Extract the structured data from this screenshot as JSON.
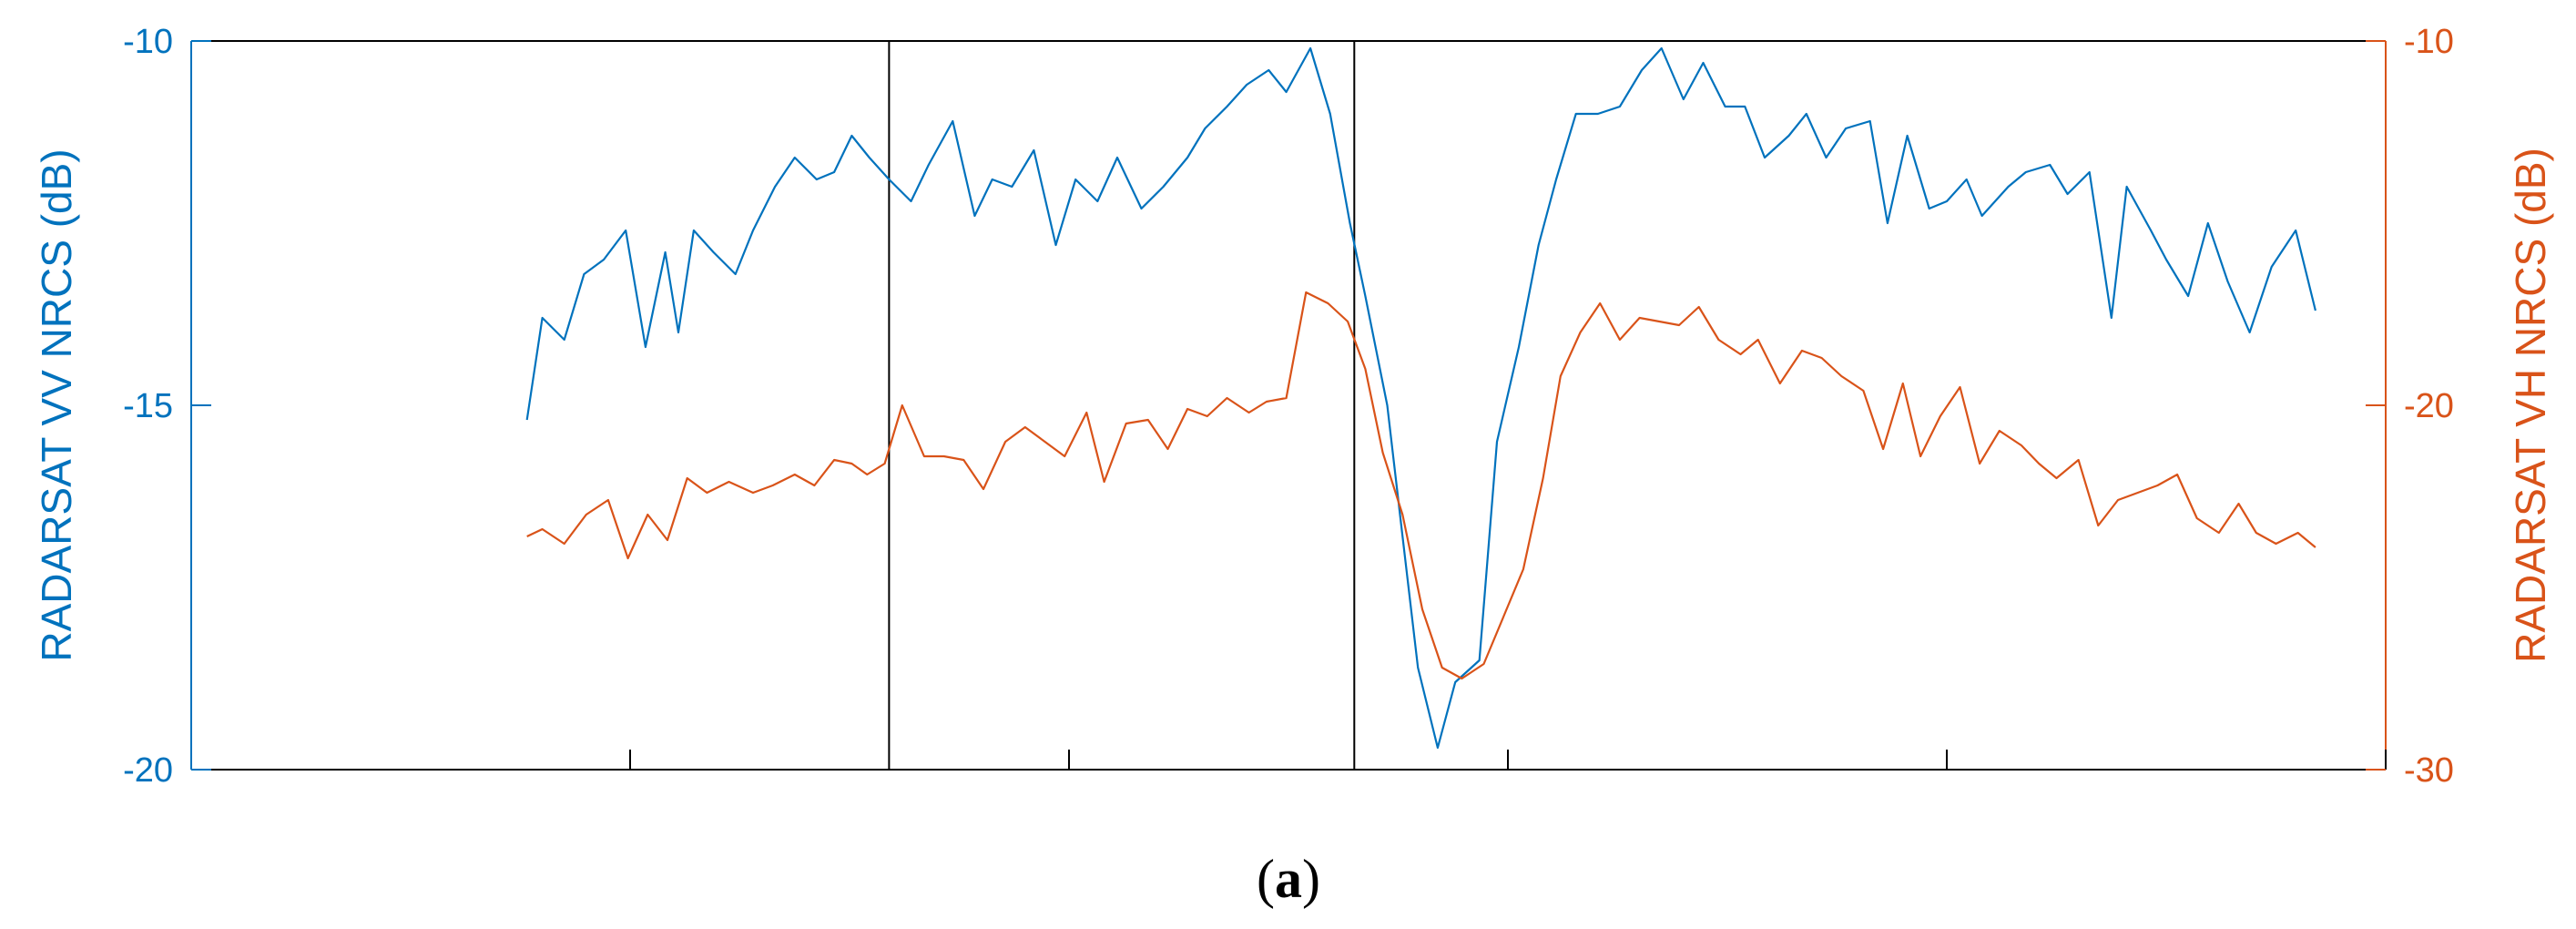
{
  "chart_data": {
    "type": "line",
    "caption": {
      "open": "(",
      "letter": "a",
      "close": ")"
    },
    "y_left": {
      "label": "RADARSAT VV NRCS (dB)",
      "lim": [
        -20,
        -10
      ],
      "ticks": [
        "-10",
        "-15",
        "-20"
      ],
      "color": "#0072BD"
    },
    "y_right": {
      "label": "RADARSAT VH NRCS (dB)",
      "lim": [
        -30,
        -10
      ],
      "ticks": [
        "-10",
        "-20",
        "-30"
      ],
      "color": "#D95319"
    },
    "x_lim": [
      0,
      100
    ],
    "x_ticks": [
      20,
      40,
      60,
      80,
      100
    ],
    "vertical_lines": [
      31.8,
      53
    ],
    "series": [
      {
        "axis": "left",
        "color": "#0072BD",
        "x": [
          15.3,
          16.0,
          17.0,
          17.9,
          18.8,
          19.8,
          20.7,
          21.6,
          22.2,
          22.9,
          23.8,
          24.8,
          25.6,
          26.6,
          27.5,
          28.5,
          29.3,
          30.1,
          30.9,
          31.8,
          32.8,
          33.6,
          34.7,
          35.7,
          36.5,
          37.4,
          38.4,
          39.4,
          40.3,
          41.3,
          42.2,
          43.3,
          44.3,
          45.4,
          46.2,
          47.2,
          48.1,
          49.1,
          49.9,
          51.0,
          51.9,
          52.8,
          53.5,
          54.5,
          55.2,
          55.9,
          56.8,
          57.6,
          58.7,
          59.5,
          60.5,
          61.4,
          62.2,
          63.1,
          64.1,
          65.1,
          66.1,
          67.0,
          68.0,
          68.9,
          69.9,
          70.8,
          71.7,
          72.8,
          73.6,
          74.5,
          75.4,
          76.5,
          77.3,
          78.2,
          79.2,
          80.0,
          80.9,
          81.6,
          82.8,
          83.6,
          84.7,
          85.5,
          86.5,
          87.5,
          88.2,
          89.3,
          90.0,
          91.0,
          91.9,
          92.8,
          93.8,
          94.8,
          95.9,
          96.8
        ],
        "y": [
          -15.2,
          -13.8,
          -14.1,
          -13.2,
          -13.0,
          -12.6,
          -14.2,
          -12.9,
          -14.0,
          -12.6,
          -12.9,
          -13.2,
          -12.6,
          -12.0,
          -11.6,
          -11.9,
          -11.8,
          -11.3,
          -11.6,
          -11.9,
          -12.2,
          -11.7,
          -11.1,
          -12.4,
          -11.9,
          -12.0,
          -11.5,
          -12.8,
          -11.9,
          -12.2,
          -11.6,
          -12.3,
          -12.0,
          -11.6,
          -11.2,
          -10.9,
          -10.6,
          -10.4,
          -10.7,
          -10.1,
          -11.0,
          -12.5,
          -13.5,
          -15.0,
          -16.8,
          -18.6,
          -19.7,
          -18.8,
          -18.5,
          -15.5,
          -14.2,
          -12.8,
          -11.9,
          -11.0,
          -11.0,
          -10.9,
          -10.4,
          -10.1,
          -10.8,
          -10.3,
          -10.9,
          -10.9,
          -11.6,
          -11.3,
          -11.0,
          -11.6,
          -11.2,
          -11.1,
          -12.5,
          -11.3,
          -12.3,
          -12.2,
          -11.9,
          -12.4,
          -12.0,
          -11.8,
          -11.7,
          -12.1,
          -11.8,
          -13.8,
          -12.0,
          -12.6,
          -13.0,
          -13.5,
          -12.5,
          -13.3,
          -14.0,
          -13.1,
          -12.6,
          -13.7
        ]
      },
      {
        "axis": "right",
        "color": "#D95319",
        "x": [
          15.3,
          16.0,
          17.0,
          18.0,
          19.0,
          19.9,
          20.8,
          21.7,
          22.6,
          23.5,
          24.5,
          25.6,
          26.5,
          27.5,
          28.4,
          29.3,
          30.1,
          30.8,
          31.6,
          32.4,
          33.4,
          34.3,
          35.2,
          36.1,
          37.1,
          38.0,
          38.9,
          39.8,
          40.8,
          41.6,
          42.6,
          43.6,
          44.5,
          45.4,
          46.3,
          47.2,
          48.2,
          49.0,
          49.9,
          50.8,
          51.8,
          52.7,
          53.5,
          54.3,
          55.2,
          56.1,
          57.0,
          57.9,
          58.9,
          59.8,
          60.7,
          61.6,
          62.4,
          63.3,
          64.2,
          65.1,
          66.0,
          66.9,
          67.8,
          68.7,
          69.6,
          70.6,
          71.4,
          72.4,
          73.4,
          74.3,
          75.2,
          76.2,
          77.1,
          78.0,
          78.8,
          79.7,
          80.6,
          81.5,
          82.4,
          83.4,
          84.2,
          85.0,
          86.0,
          86.9,
          87.8,
          88.7,
          89.6,
          90.5,
          91.4,
          92.4,
          93.3,
          94.1,
          95.0,
          96.0,
          96.8
        ],
        "y": [
          -23.6,
          -23.4,
          -23.8,
          -23.0,
          -22.6,
          -24.2,
          -23.0,
          -23.7,
          -22.0,
          -22.4,
          -22.1,
          -22.4,
          -22.2,
          -21.9,
          -22.2,
          -21.5,
          -21.6,
          -21.9,
          -21.6,
          -20.0,
          -21.4,
          -21.4,
          -21.5,
          -22.3,
          -21.0,
          -20.6,
          -21.0,
          -21.4,
          -20.2,
          -22.1,
          -20.5,
          -20.4,
          -21.2,
          -20.1,
          -20.3,
          -19.8,
          -20.2,
          -19.9,
          -19.8,
          -16.9,
          -17.2,
          -17.7,
          -19.0,
          -21.3,
          -23.0,
          -25.6,
          -27.2,
          -27.5,
          -27.1,
          -25.8,
          -24.5,
          -22.0,
          -19.2,
          -18.0,
          -17.2,
          -18.2,
          -17.6,
          -17.7,
          -17.8,
          -17.3,
          -18.2,
          -18.6,
          -18.2,
          -19.4,
          -18.5,
          -18.7,
          -19.2,
          -19.6,
          -21.2,
          -19.4,
          -21.4,
          -20.3,
          -19.5,
          -21.6,
          -20.7,
          -21.1,
          -21.6,
          -22.0,
          -21.5,
          -23.3,
          -22.6,
          -22.4,
          -22.2,
          -21.9,
          -23.1,
          -23.5,
          -22.7,
          -23.5,
          -23.8,
          -23.5,
          -23.9
        ]
      }
    ]
  }
}
